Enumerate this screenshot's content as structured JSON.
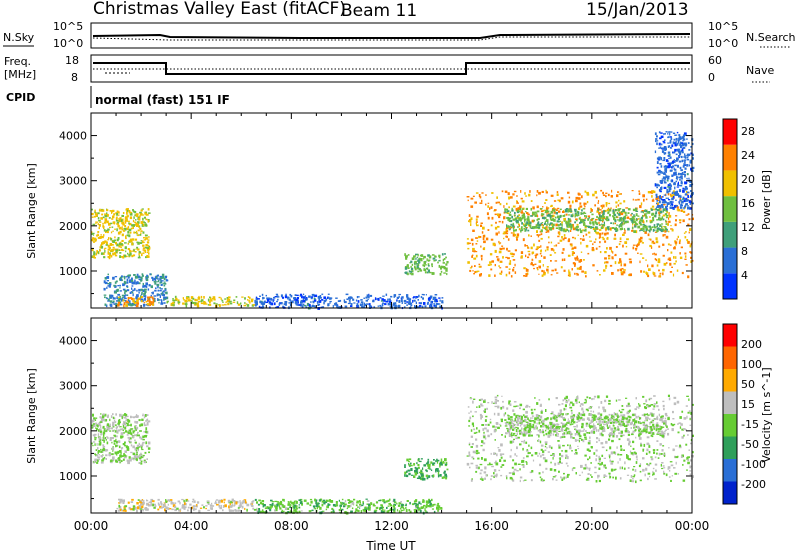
{
  "header": {
    "station": "Christmas Valley East (fitACF)",
    "beam": "Beam 11",
    "date": "15/Jan/2013"
  },
  "parameter_panels": {
    "noise": {
      "left_label": "N.Sky",
      "right_label": "N.Search",
      "left_ticks": [
        "10^5",
        "10^0"
      ],
      "right_ticks": [
        "10^5",
        "10^0"
      ]
    },
    "frequency": {
      "left_label_line1": "Freq.",
      "left_label_line2": "[MHz]",
      "right_label": "Nave",
      "left_ticks": [
        "18",
        "8"
      ],
      "right_ticks": [
        "60",
        "0"
      ]
    },
    "cpid": {
      "label": "CPID",
      "text": "normal (fast) 151 IF"
    }
  },
  "chart_data": [
    {
      "type": "heatmap",
      "name": "power",
      "ylabel": "Slant Range [km]",
      "xlabel": "",
      "colorbar_label": "Power [dB]",
      "colorbar_ticks": [
        "4",
        "8",
        "12",
        "16",
        "20",
        "24",
        "28"
      ],
      "colorbar_range": [
        0,
        30
      ],
      "colors": [
        "#0033ff",
        "#2a6fd6",
        "#3f9f7a",
        "#6fbf3f",
        "#f0c000",
        "#ff8000",
        "#ff0000"
      ],
      "ylim": [
        180,
        4500
      ],
      "yticks": [
        "1000",
        "2000",
        "3000",
        "4000"
      ],
      "xlim": [
        0,
        24
      ],
      "regions": [
        {
          "t": [
            0.0,
            2.3
          ],
          "r": [
            1300,
            2400
          ],
          "power": 18
        },
        {
          "t": [
            0.5,
            3.0
          ],
          "r": [
            250,
            950
          ],
          "power": 8
        },
        {
          "t": [
            1.0,
            2.5
          ],
          "r": [
            250,
            450
          ],
          "power": 22
        },
        {
          "t": [
            3.0,
            6.5
          ],
          "r": [
            250,
            450
          ],
          "power": 18
        },
        {
          "t": [
            6.5,
            14.0
          ],
          "r": [
            200,
            500
          ],
          "power": 6
        },
        {
          "t": [
            12.5,
            14.2
          ],
          "r": [
            950,
            1400
          ],
          "power": 14
        },
        {
          "t": [
            15.0,
            24.0
          ],
          "r": [
            900,
            2800
          ],
          "power": 22
        },
        {
          "t": [
            16.5,
            23.0
          ],
          "r": [
            1900,
            2400
          ],
          "power": 14
        },
        {
          "t": [
            22.5,
            24.0
          ],
          "r": [
            2400,
            4100
          ],
          "power": 6
        }
      ]
    },
    {
      "type": "heatmap",
      "name": "velocity",
      "ylabel": "Slant Range [km]",
      "xlabel": "Time UT",
      "colorbar_label": "Velocity [m s^-1]",
      "colorbar_ticks": [
        "200",
        "100",
        "50",
        "15",
        "-15",
        "-50",
        "-100",
        "-200"
      ],
      "colorbar_range": [
        -250,
        250
      ],
      "colors": [
        "#0022cc",
        "#2a6fd6",
        "#2f9f5a",
        "#66cc33",
        "#bebebe",
        "#ffaa00",
        "#ff6600",
        "#ff0000"
      ],
      "ylim": [
        180,
        4500
      ],
      "yticks": [
        "1000",
        "2000",
        "3000",
        "4000"
      ],
      "xlim": [
        0,
        24
      ],
      "xticks": [
        "00:00",
        "04:00",
        "08:00",
        "12:00",
        "16:00",
        "20:00",
        "00:00"
      ],
      "regions": [
        {
          "t": [
            0.0,
            2.3
          ],
          "r": [
            1300,
            2400
          ],
          "velocity": 0
        },
        {
          "t": [
            1.0,
            6.5
          ],
          "r": [
            250,
            500
          ],
          "velocity": 40
        },
        {
          "t": [
            6.5,
            14.0
          ],
          "r": [
            200,
            500
          ],
          "velocity": -40
        },
        {
          "t": [
            12.5,
            14.2
          ],
          "r": [
            950,
            1400
          ],
          "velocity": -70
        },
        {
          "t": [
            15.0,
            24.0
          ],
          "r": [
            900,
            2800
          ],
          "velocity": 0
        },
        {
          "t": [
            16.5,
            23.0
          ],
          "r": [
            1900,
            2400
          ],
          "velocity": 0
        }
      ]
    }
  ]
}
